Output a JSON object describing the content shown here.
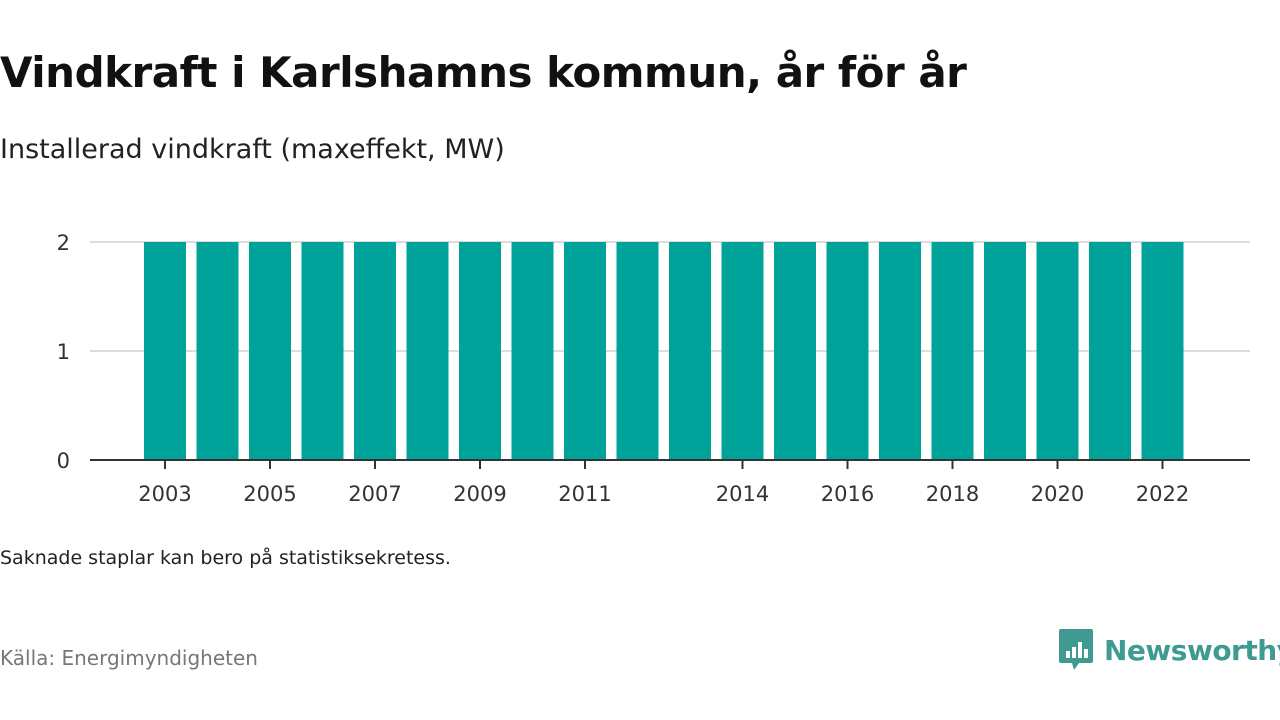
{
  "header": {
    "title": "Vindkraft i Karlshamns kommun, år för år",
    "subtitle": "Installerad vindkraft (maxeffekt, MW)"
  },
  "footer": {
    "note": "Saknade staplar kan bero på statistiksekretess.",
    "source": "Källa: Energimyndigheten",
    "brand": "Newsworthy"
  },
  "colors": {
    "bar": "#00a39a",
    "grid": "#dddddd",
    "axis": "#333333",
    "brand": "#3f9b91"
  },
  "chart_data": {
    "type": "bar",
    "categories": [
      "2003",
      "2004",
      "2005",
      "2006",
      "2007",
      "2008",
      "2009",
      "2010",
      "2011",
      "2012",
      "2013",
      "2014",
      "2015",
      "2016",
      "2017",
      "2018",
      "2019",
      "2020",
      "2021",
      "2022"
    ],
    "values": [
      2,
      2,
      2,
      2,
      2,
      2,
      2,
      2,
      2,
      2,
      2,
      2,
      2,
      2,
      2,
      2,
      2,
      2,
      2,
      2
    ],
    "xtick_labels": [
      "2003",
      "2005",
      "2007",
      "2009",
      "2011",
      "2014",
      "2016",
      "2018",
      "2020",
      "2022"
    ],
    "yticks": [
      0,
      1,
      2
    ],
    "ylim": [
      0,
      2
    ],
    "grid": true
  }
}
